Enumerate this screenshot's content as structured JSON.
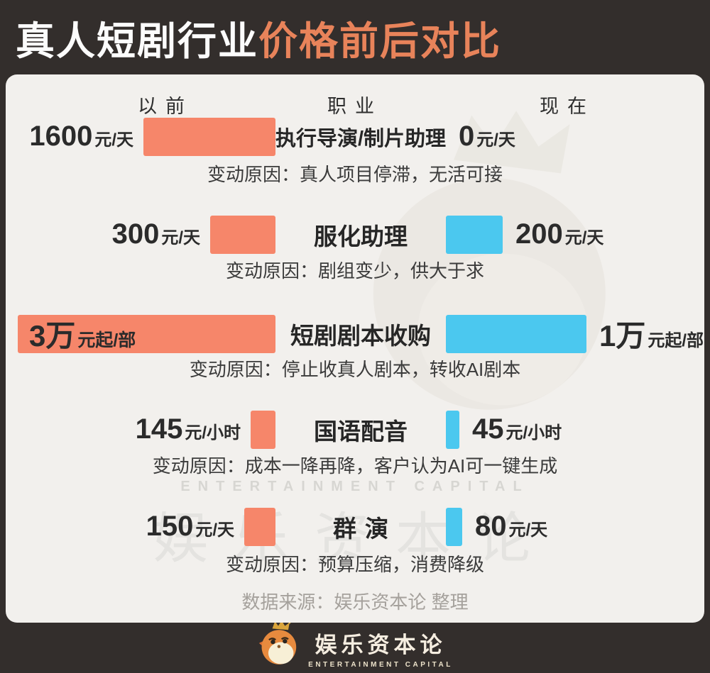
{
  "title": {
    "plain": "真人短剧行业",
    "accent": "价格前后对比"
  },
  "columns": {
    "before": "以前",
    "job": "职业",
    "after": "现在"
  },
  "rows": [
    {
      "job": "执行导演/制片助理",
      "before_value": "1600",
      "before_unit": "元/天",
      "before_bar_w": 186,
      "after_value": "0",
      "after_unit": "元/天",
      "after_bar_w": 0,
      "reason": "变动原因：真人项目停滞，无活可接"
    },
    {
      "job": "服化助理",
      "before_value": "300",
      "before_unit": "元/天",
      "before_bar_w": 92,
      "after_value": "200",
      "after_unit": "元/天",
      "after_bar_w": 80,
      "reason": "变动原因：剧组变少，供大于求"
    },
    {
      "job": "短剧剧本收购",
      "before_value": "3万",
      "before_unit": "元起/部",
      "before_bar_w": 363,
      "after_value": "1万",
      "after_unit": "元起/部",
      "after_bar_w": 198,
      "reason": "变动原因：停止收真人剧本，转收AI剧本"
    },
    {
      "job": "国语配音",
      "before_value": "145",
      "before_unit": "元/小时",
      "before_bar_w": 35,
      "after_value": "45",
      "after_unit": "元/小时",
      "after_bar_w": 19,
      "reason": "变动原因：成本一降再降，客户认为AI可一键生成"
    },
    {
      "job": "群演",
      "before_value": "150",
      "before_unit": "元/天",
      "before_bar_w": 44,
      "after_value": "80",
      "after_unit": "元/天",
      "after_bar_w": 23,
      "reason": "变动原因：预算压缩，消费降级"
    }
  ],
  "source": "数据来源：娱乐资本论 整理",
  "watermark": {
    "cn": "娱乐资本论",
    "en": "ENTERTAINMENT CAPITAL"
  },
  "footer": {
    "logo_cn": "娱乐资本论",
    "logo_en": "ENTERTAINMENT CAPITAL"
  },
  "colors": {
    "background": "#332E2C",
    "panel": "#F2F0ED",
    "title_accent": "#E8835A",
    "before_bar": "#F6866A",
    "after_bar": "#4BC8EF",
    "source_text": "#A5A19C"
  },
  "chart_data": {
    "type": "bar",
    "title": "真人短剧行业价格前后对比",
    "categories": [
      "执行导演/制片助理",
      "服化助理",
      "短剧剧本收购",
      "国语配音",
      "群演"
    ],
    "series": [
      {
        "name": "以前",
        "values": [
          1600,
          300,
          30000,
          145,
          150
        ]
      },
      {
        "name": "现在",
        "values": [
          0,
          200,
          10000,
          45,
          80
        ]
      }
    ],
    "units": [
      "元/天",
      "元/天",
      "元起/部",
      "元/小时",
      "元/天"
    ],
    "annotations": [
      "变动原因：真人项目停滞，无活可接",
      "变动原因：剧组变少，供大于求",
      "变动原因：停止收真人剧本，转收AI剧本",
      "变动原因：成本一降再降，客户认为AI可一键生成",
      "变动原因：预算压缩，消费降级"
    ],
    "legend_position": "top-row-headers",
    "grid": false,
    "orientation": "horizontal-mirrored"
  }
}
